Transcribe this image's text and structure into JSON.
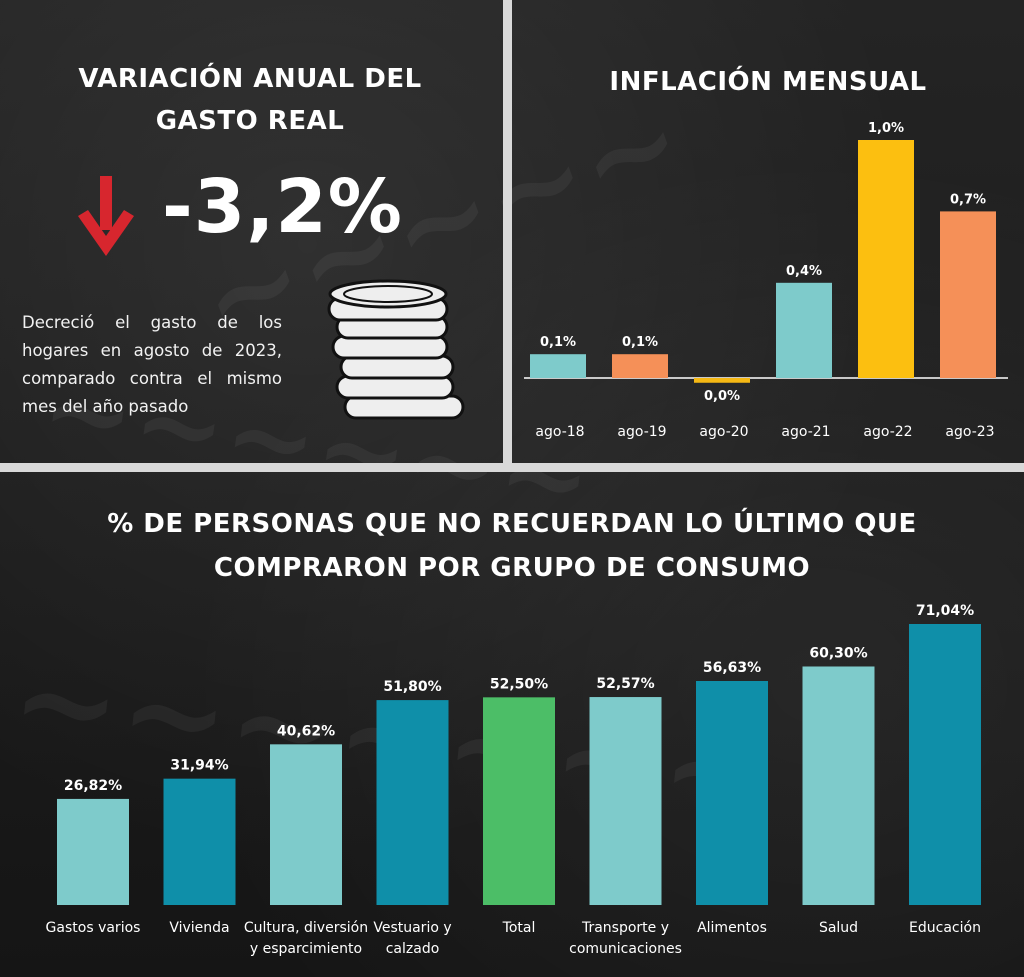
{
  "gasto_real": {
    "title_line1": "VARIACIÓN ANUAL DEL",
    "title_line2": "GASTO REAL",
    "value": "-3,2%",
    "description": "Decreció el gasto de los hogares en agosto de 2023, comparado contra el mismo mes del año pasado",
    "arrow_color": "#d7262e"
  },
  "inflacion": {
    "title": "INFLACIÓN MENSUAL"
  },
  "consumo": {
    "title_line1": "% DE PERSONAS QUE NO RECUERDAN LO ÚLTIMO QUE",
    "title_line2": "COMPRARON POR GRUPO DE CONSUMO"
  },
  "chart_data": [
    {
      "type": "bar",
      "title": "INFLACIÓN MENSUAL",
      "categories": [
        "ago-18",
        "ago-19",
        "ago-20",
        "ago-21",
        "ago-22",
        "ago-23"
      ],
      "values": [
        0.1,
        0.1,
        -0.02,
        0.4,
        1.0,
        0.7
      ],
      "data_labels": [
        "0,1%",
        "0,1%",
        "0,0%",
        "0,4%",
        "1,0%",
        "0,7%"
      ],
      "colors": [
        "#7ecbcb",
        "#f59058",
        "#f5b814",
        "#7ecbcb",
        "#fcbf10",
        "#f59058"
      ],
      "ylim": [
        -0.05,
        1.0
      ],
      "grid": false
    },
    {
      "type": "bar",
      "title": "% DE PERSONAS QUE NO RECUERDAN LO ÚLTIMO QUE COMPRARON POR GRUPO DE CONSUMO",
      "categories": [
        "Gastos varios",
        "Vivienda",
        "Cultura, diversión y esparcimiento",
        "Vestuario y calzado",
        "Total",
        "Transporte y comunicaciones",
        "Alimentos",
        "Salud",
        "Educación"
      ],
      "category_lines": [
        [
          "Gastos varios"
        ],
        [
          "Vivienda"
        ],
        [
          "Cultura, diversión",
          "y esparcimiento"
        ],
        [
          "Vestuario y",
          "calzado"
        ],
        [
          "Total"
        ],
        [
          "Transporte y",
          "comunicaciones"
        ],
        [
          "Alimentos"
        ],
        [
          "Salud"
        ],
        [
          "Educación"
        ]
      ],
      "values": [
        26.82,
        31.94,
        40.62,
        51.8,
        52.5,
        52.57,
        56.63,
        60.3,
        71.04
      ],
      "data_labels": [
        "26,82%",
        "31,94%",
        "40,62%",
        "51,80%",
        "52,50%",
        "52,57%",
        "56,63%",
        "60,30%",
        "71,04%"
      ],
      "colors": [
        "#7ecbcb",
        "#0f8fa9",
        "#7ecbcb",
        "#0f8fa9",
        "#4cbe67",
        "#7ecbcb",
        "#0f8fa9",
        "#7ecbcb",
        "#0f8fa9"
      ],
      "ylim": [
        0,
        71.04
      ],
      "grid": false
    }
  ]
}
